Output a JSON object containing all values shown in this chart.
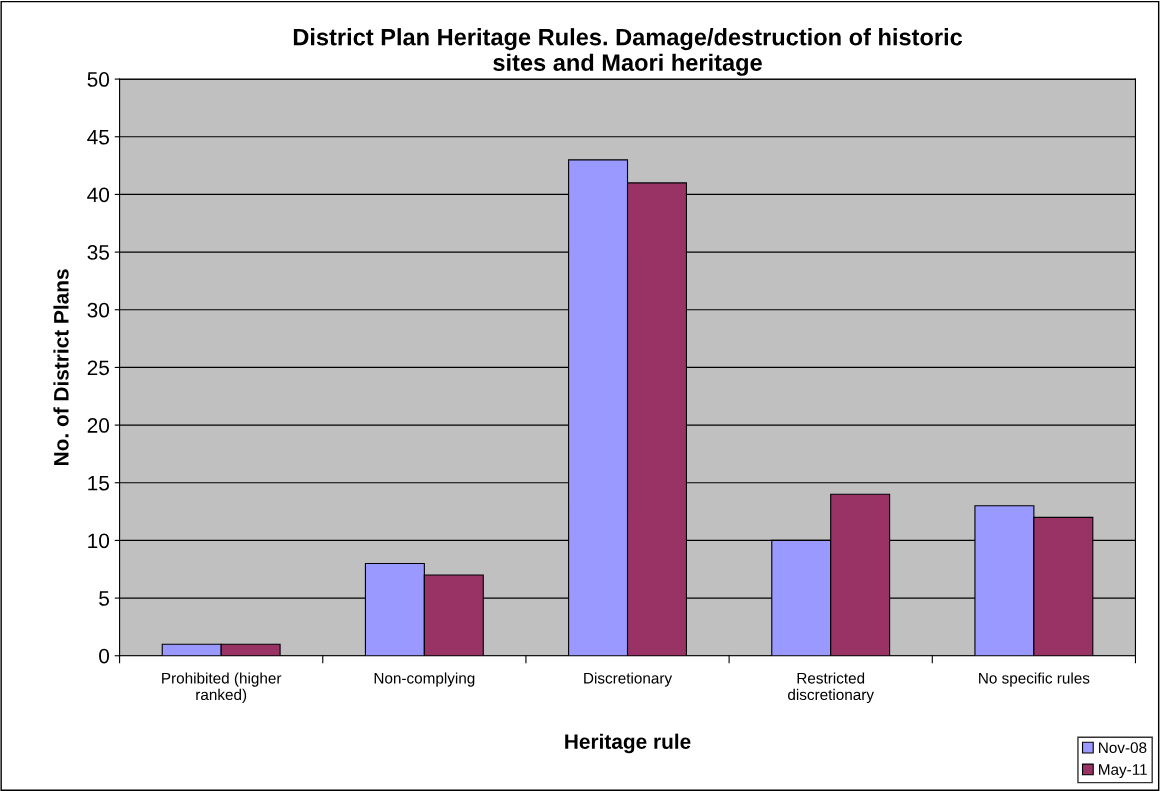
{
  "chart_data": {
    "type": "bar",
    "title": "District Plan Heritage Rules. Damage/destruction of historic sites and Maori heritage",
    "xlabel": "Heritage rule",
    "ylabel": "No. of District Plans",
    "categories": [
      "Prohibited (higher ranked)",
      "Non-complying",
      "Discretionary",
      "Restricted discretionary",
      "No specific rules"
    ],
    "series": [
      {
        "name": "Nov-08",
        "color": "#9999ff",
        "values": [
          1,
          8,
          43,
          10,
          13
        ]
      },
      {
        "name": "May-11",
        "color": "#993366",
        "values": [
          1,
          7,
          41,
          14,
          12
        ]
      }
    ],
    "ylim": [
      0,
      50
    ],
    "yticks": [
      0,
      5,
      10,
      15,
      20,
      25,
      30,
      35,
      40,
      45,
      50
    ],
    "grid": "y",
    "legend": "bottom right"
  }
}
